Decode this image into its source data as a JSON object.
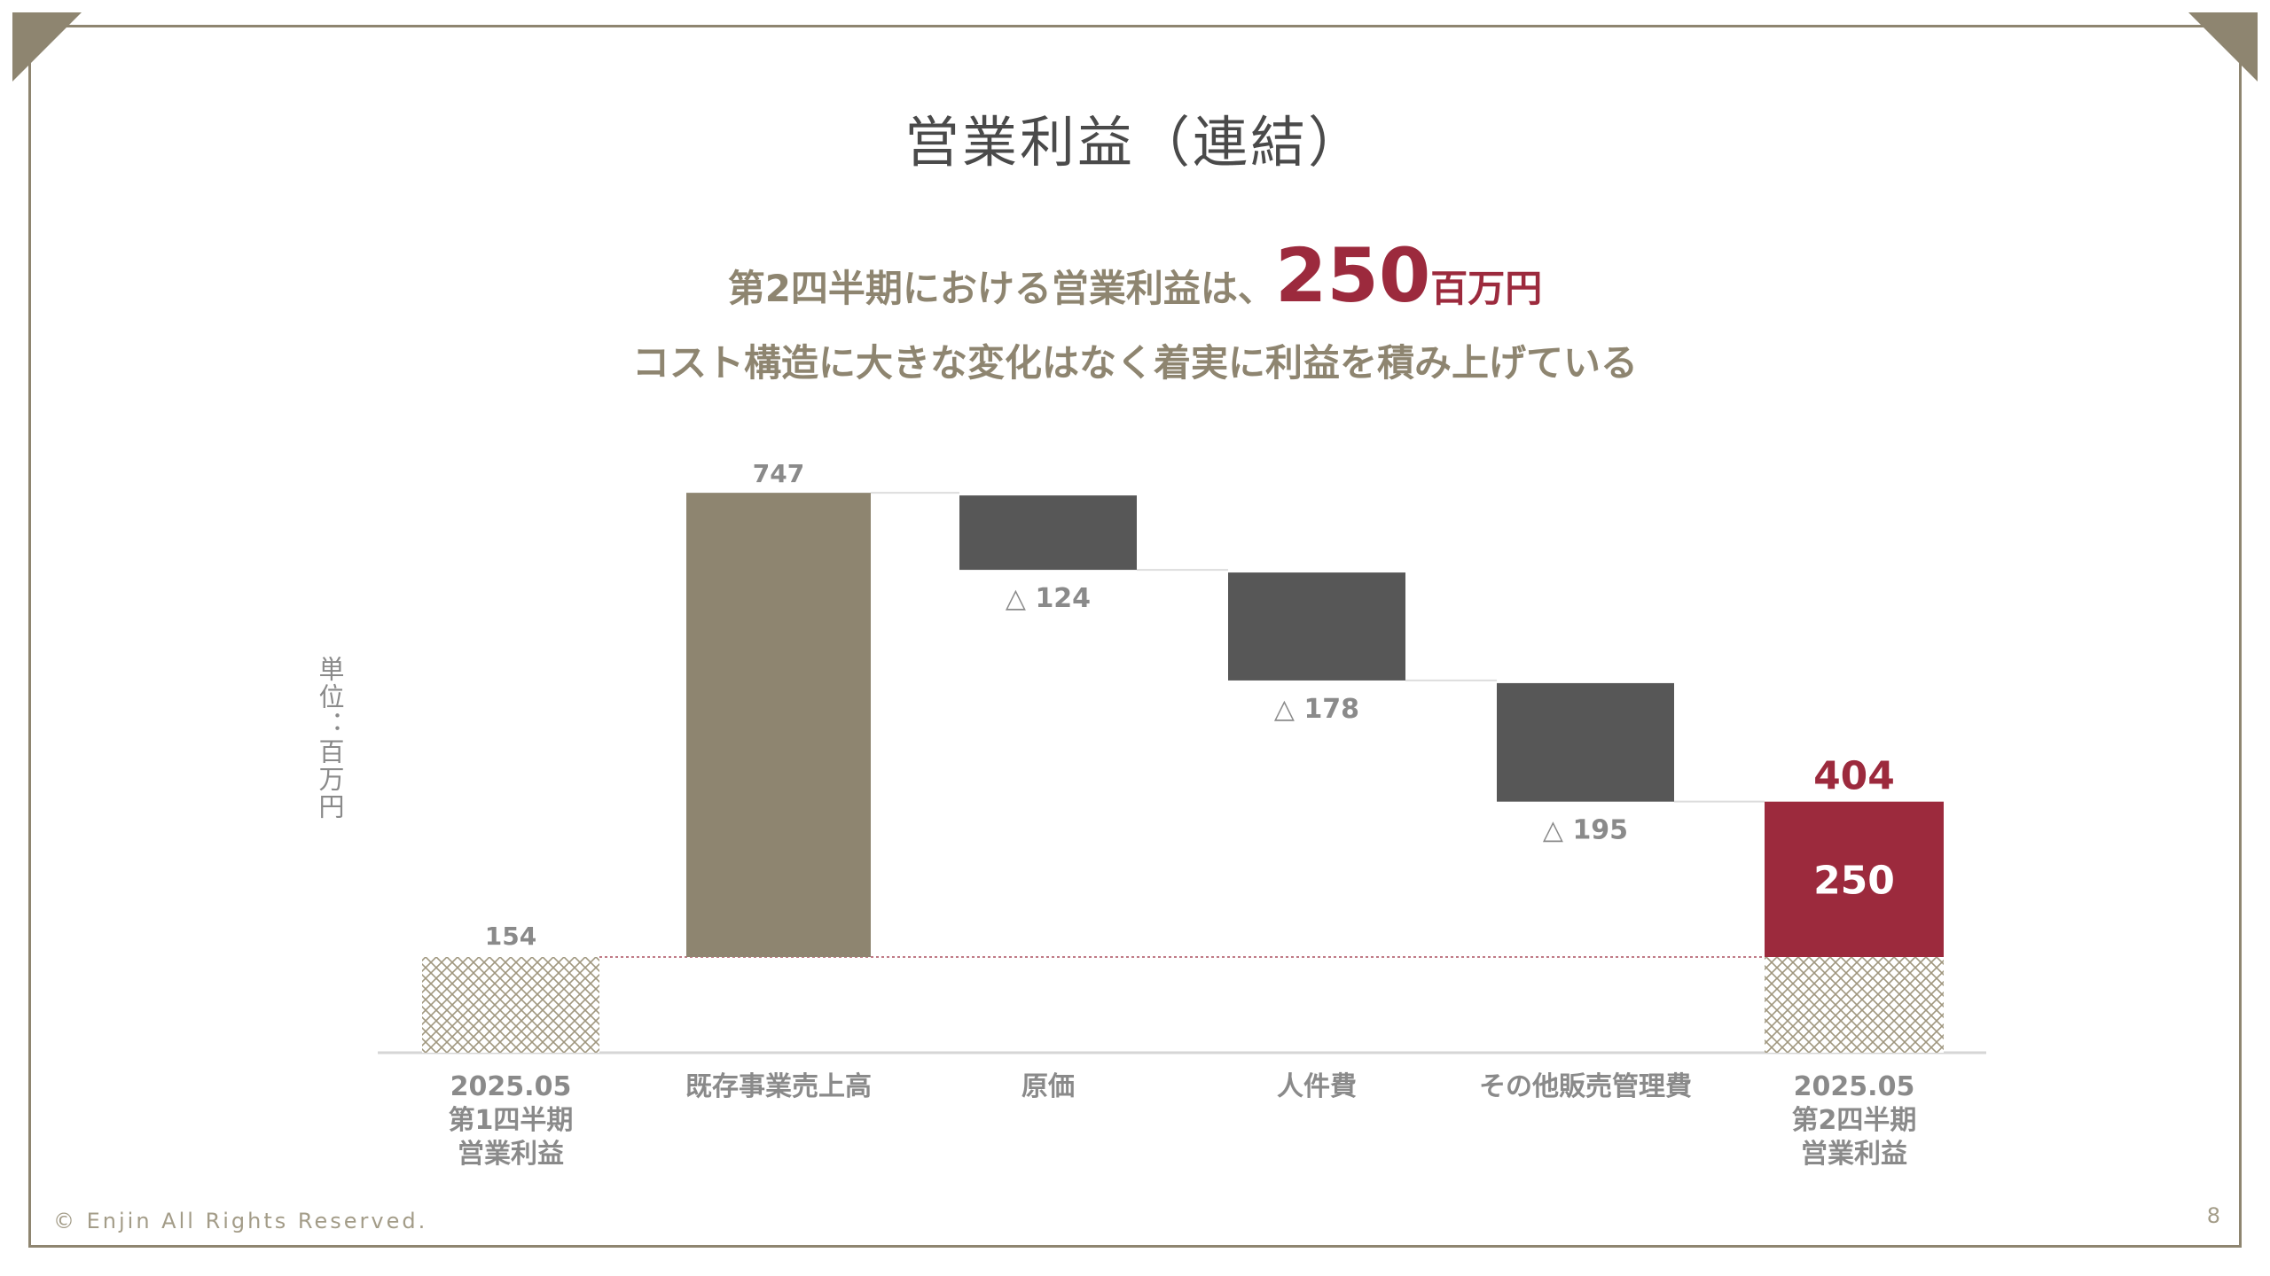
{
  "title": "営業利益（連結）",
  "headline": {
    "prefix": "第2四半期における営業利益は、",
    "figure": "250",
    "unit": "百万円"
  },
  "subheadline": "コスト構造に大きな変化はなく着実に利益を積み上げている",
  "unit_label": "単位：百万円",
  "footer": {
    "copyright": "© Enjin All Rights Reserved.",
    "page_number": "8"
  },
  "colors": {
    "frame": "#8e8570",
    "revenue": "#8e8570",
    "cost": "#575757",
    "result": "#9c2a3d",
    "text_gold": "#8e8570",
    "text_grey": "#8a8a8a"
  },
  "chart_data": {
    "type": "bar",
    "subtype": "waterfall",
    "categories": [
      "2025.05\n第1四半期\n営業利益",
      "既存事業売上高",
      "原価",
      "人件費",
      "その他販売管理費",
      "2025.05\n第2四半期\n営業利益"
    ],
    "steps": [
      {
        "category": "2025.05\n第1四半期\n営業利益",
        "kind": "baseline",
        "value": 154,
        "label": "154"
      },
      {
        "category": "既存事業売上高",
        "kind": "increase",
        "value": 747,
        "label": "747"
      },
      {
        "category": "原価",
        "kind": "decrease",
        "value": -124,
        "label": "△ 124"
      },
      {
        "category": "人件費",
        "kind": "decrease",
        "value": -178,
        "label": "△ 178"
      },
      {
        "category": "その他販売管理費",
        "kind": "decrease",
        "value": -195,
        "label": "△ 195"
      },
      {
        "category": "2025.05\n第2四半期\n営業利益",
        "kind": "total",
        "value": 250,
        "cumulative": 404,
        "cumulative_label": "404",
        "label": "250"
      }
    ],
    "ylabel": "単位：百万円",
    "grid": false,
    "legend": "none"
  }
}
